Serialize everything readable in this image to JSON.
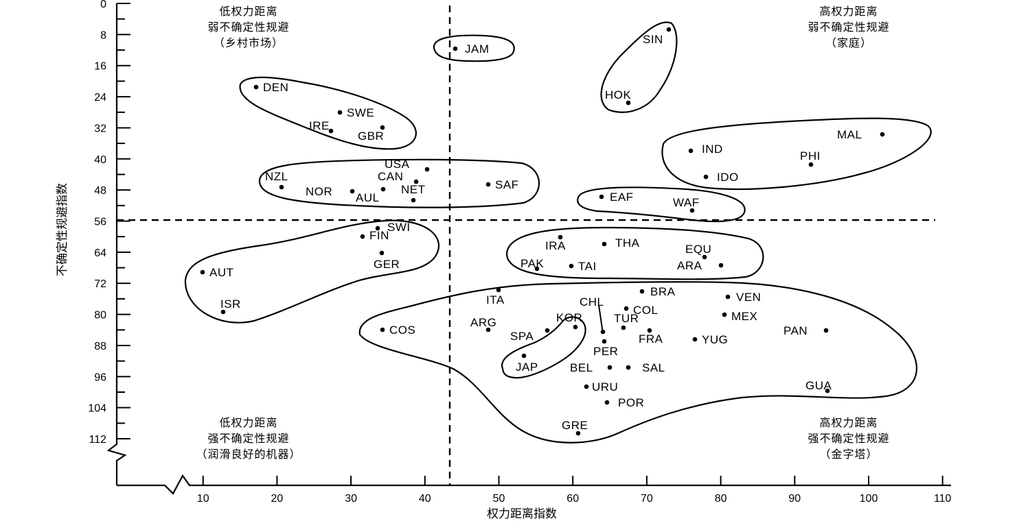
{
  "chart_data": {
    "type": "scatter",
    "xlabel": "权力距离指数",
    "ylabel": "不确定性规避指数",
    "x_ticks": [
      10,
      20,
      30,
      40,
      50,
      60,
      70,
      80,
      90,
      100,
      110
    ],
    "y_ticks": [
      0,
      8,
      16,
      24,
      32,
      40,
      48,
      56,
      64,
      72,
      80,
      88,
      96,
      104,
      112
    ],
    "xlim": [
      0,
      110
    ],
    "ylim": [
      0,
      112
    ],
    "y_inverted": true,
    "grid": false,
    "dividers": {
      "x": 43.5,
      "y": 55.8
    },
    "points": [
      {
        "label": "JAM",
        "x": 45,
        "y": 11
      },
      {
        "label": "SIN",
        "x": 74,
        "y": 8
      },
      {
        "label": "HOK",
        "x": 68,
        "y": 25
      },
      {
        "label": "DEN",
        "x": 18,
        "y": 23
      },
      {
        "label": "SWE",
        "x": 31,
        "y": 29
      },
      {
        "label": "IRE",
        "x": 28,
        "y": 35
      },
      {
        "label": "GBR",
        "x": 35,
        "y": 35
      },
      {
        "label": "MAL",
        "x": 104,
        "y": 36
      },
      {
        "label": "IND",
        "x": 77,
        "y": 40
      },
      {
        "label": "PHI",
        "x": 94,
        "y": 44
      },
      {
        "label": "IDO",
        "x": 78,
        "y": 48
      },
      {
        "label": "USA",
        "x": 40,
        "y": 46
      },
      {
        "label": "CAN",
        "x": 39,
        "y": 48
      },
      {
        "label": "NZL",
        "x": 22,
        "y": 49
      },
      {
        "label": "NOR",
        "x": 31,
        "y": 50
      },
      {
        "label": "NET",
        "x": 38,
        "y": 53
      },
      {
        "label": "AUL",
        "x": 36,
        "y": 51
      },
      {
        "label": "SAF",
        "x": 49,
        "y": 49
      },
      {
        "label": "EAF",
        "x": 64,
        "y": 52
      },
      {
        "label": "WAF",
        "x": 77,
        "y": 54
      },
      {
        "label": "SWI",
        "x": 34,
        "y": 58
      },
      {
        "label": "FIN",
        "x": 33,
        "y": 59
      },
      {
        "label": "GER",
        "x": 35,
        "y": 65
      },
      {
        "label": "AUT",
        "x": 11,
        "y": 70
      },
      {
        "label": "ISR",
        "x": 13,
        "y": 81
      },
      {
        "label": "IRA",
        "x": 58,
        "y": 59
      },
      {
        "label": "THA",
        "x": 64,
        "y": 64
      },
      {
        "label": "EQU",
        "x": 78,
        "y": 67
      },
      {
        "label": "PAK",
        "x": 55,
        "y": 70
      },
      {
        "label": "TAI",
        "x": 58,
        "y": 69
      },
      {
        "label": "ARA",
        "x": 80,
        "y": 68
      },
      {
        "label": "ITA",
        "x": 50,
        "y": 75
      },
      {
        "label": "BRA",
        "x": 69,
        "y": 76
      },
      {
        "label": "CHL",
        "x": 63,
        "y": 86
      },
      {
        "label": "COL",
        "x": 67,
        "y": 80
      },
      {
        "label": "VEN",
        "x": 81,
        "y": 76
      },
      {
        "label": "MEX",
        "x": 81,
        "y": 82
      },
      {
        "label": "ARG",
        "x": 49,
        "y": 86
      },
      {
        "label": "KOR",
        "x": 60,
        "y": 85
      },
      {
        "label": "TUR",
        "x": 66,
        "y": 85
      },
      {
        "label": "SPA",
        "x": 57,
        "y": 86
      },
      {
        "label": "FRA",
        "x": 68,
        "y": 86
      },
      {
        "label": "PAN",
        "x": 95,
        "y": 95
      },
      {
        "label": "YUG",
        "x": 76,
        "y": 88
      },
      {
        "label": "COS",
        "x": 35,
        "y": 86
      },
      {
        "label": "PER",
        "x": 64,
        "y": 87
      },
      {
        "label": "JAP",
        "x": 54,
        "y": 92
      },
      {
        "label": "BEL",
        "x": 65,
        "y": 94
      },
      {
        "label": "SAL",
        "x": 66,
        "y": 94
      },
      {
        "label": "URU",
        "x": 61,
        "y": 100
      },
      {
        "label": "GUA",
        "x": 95,
        "y": 101
      },
      {
        "label": "POR",
        "x": 63,
        "y": 104
      },
      {
        "label": "GRE",
        "x": 60,
        "y": 112
      }
    ],
    "quadrants": [
      {
        "name": "top-left",
        "lines": [
          "低权力距离",
          "弱不确定性规避",
          "（乡村市场）"
        ]
      },
      {
        "name": "top-right",
        "lines": [
          "高权力距离",
          "弱不确定性规避",
          "（家庭）"
        ]
      },
      {
        "name": "bottom-left",
        "lines": [
          "低权力距离",
          "强不确定性规避",
          "（润滑良好的机器）"
        ]
      },
      {
        "name": "bottom-right",
        "lines": [
          "高权力距离",
          "强不确定性规避",
          "（金字塔）"
        ]
      }
    ]
  }
}
